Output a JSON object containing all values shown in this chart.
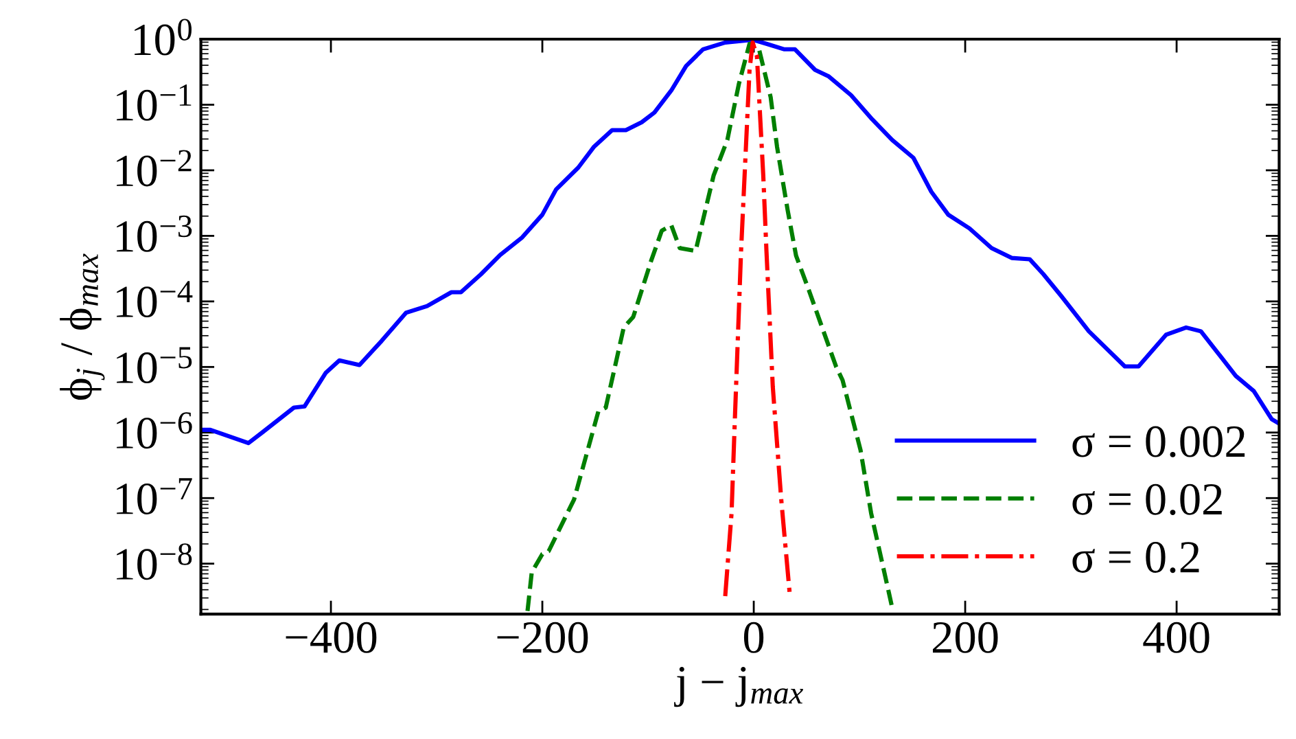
{
  "chart_data": {
    "type": "line",
    "xlabel": "j − j$_{max}$",
    "ylabel": "ϕ$_{j}$ / ϕ$_{max}$",
    "log": "y",
    "xlim": [
      -523,
      497
    ],
    "ylim": [
      1.7e-09,
      1
    ],
    "xticks": [
      {
        "value": -400,
        "label": "−400"
      },
      {
        "value": -200,
        "label": "−200"
      },
      0,
      200,
      400
    ],
    "yticks": [
      {
        "value": 1,
        "label": "10$^{0}$"
      },
      {
        "value": 0.1,
        "label": "10$^{−1}$"
      },
      {
        "value": 0.01,
        "label": "10$^{−2}$"
      },
      {
        "value": 0.001,
        "label": "10$^{−3}$"
      },
      {
        "value": 0.0001,
        "label": "10$^{−4}$"
      },
      {
        "value": 1e-05,
        "label": "10$^{−5}$"
      },
      {
        "value": 1e-06,
        "label": "10$^{−6}$"
      },
      {
        "value": 1e-07,
        "label": "10$^{−7}$"
      },
      {
        "value": 1e-08,
        "label": "10$^{−8}$"
      }
    ],
    "legend": "bottom right",
    "series": [
      {
        "name": "σ = 0.002",
        "color": "#0000ff",
        "line_style": "solid",
        "x": [
          -521,
          -514,
          -478,
          -465,
          -435,
          -425,
          -405,
          -392,
          -373,
          -352,
          -329,
          -309,
          -286,
          -277,
          -258,
          -240,
          -219,
          -200,
          -187,
          -166,
          -151,
          -134,
          -121,
          -106,
          -94,
          -78,
          -64,
          -48,
          -27,
          -1,
          12,
          29,
          39,
          58,
          71,
          92,
          112,
          131,
          151,
          168,
          184,
          204,
          225,
          244,
          261,
          274,
          291,
          317,
          351,
          364,
          390,
          409,
          423,
          456,
          473,
          490,
          496
        ],
        "values": [
          1.1e-06,
          1.1e-06,
          6.9e-07,
          1e-06,
          2.4e-06,
          2.5e-06,
          8.1e-06,
          1.26e-05,
          1.07e-05,
          2.5e-05,
          6.7e-05,
          8.5e-05,
          0.000138,
          0.000138,
          0.00026,
          0.00051,
          0.00095,
          0.0021,
          0.0051,
          0.011,
          0.023,
          0.041,
          0.041,
          0.054,
          0.076,
          0.165,
          0.39,
          0.7,
          0.89,
          0.98,
          0.85,
          0.7,
          0.7,
          0.34,
          0.27,
          0.14,
          0.06,
          0.029,
          0.0155,
          0.0047,
          0.0021,
          0.0013,
          0.00065,
          0.00046,
          0.00044,
          0.00026,
          0.00012,
          3.5e-05,
          1.02e-05,
          1.02e-05,
          3.1e-05,
          4e-05,
          3.5e-05,
          7.3e-06,
          4.3e-06,
          1.6e-06,
          1.4e-06
        ]
      },
      {
        "name": "σ = 0.02",
        "color": "#007f00",
        "line_style": "dashed",
        "x": [
          -214,
          -210,
          -200,
          -194,
          -173,
          -170,
          -147,
          -140,
          -123,
          -114,
          -97,
          -87,
          -78,
          -70,
          -55,
          -38,
          -25,
          -14,
          -4,
          5,
          16,
          22,
          32,
          40,
          52,
          78,
          84,
          101,
          111,
          128,
          131
        ],
        "values": [
          1.9e-09,
          7.4e-09,
          1.4e-08,
          1.55e-08,
          7.6e-08,
          9.5e-08,
          2.1e-06,
          2.4e-06,
          4e-05,
          5.8e-05,
          0.00042,
          0.0012,
          0.00145,
          0.00065,
          0.00059,
          0.0083,
          0.029,
          0.21,
          0.85,
          0.7,
          0.13,
          0.023,
          0.0025,
          0.0005,
          0.00015,
          1e-05,
          6.3e-06,
          5.4e-07,
          5.9e-08,
          3.5e-09,
          2.1e-09
        ]
      },
      {
        "name": "σ = 0.2",
        "color": "#ff0000",
        "line_style": "dashdot",
        "x": [
          -27,
          -21,
          -18,
          -12,
          -4,
          -1,
          3,
          9,
          12,
          18,
          26,
          34
        ],
        "values": [
          3.2e-09,
          5.9e-08,
          1.4e-06,
          0.00059,
          0.34,
          0.89,
          0.55,
          0.0083,
          0.00059,
          5e-06,
          9.5e-08,
          3.5e-09
        ]
      }
    ]
  }
}
